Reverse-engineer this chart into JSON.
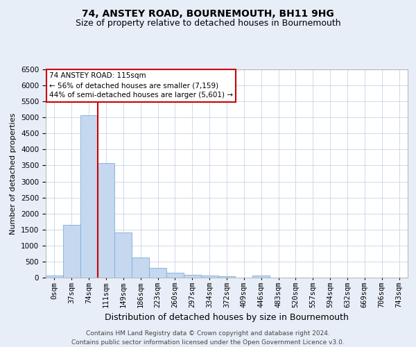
{
  "title": "74, ANSTEY ROAD, BOURNEMOUTH, BH11 9HG",
  "subtitle": "Size of property relative to detached houses in Bournemouth",
  "xlabel": "Distribution of detached houses by size in Bournemouth",
  "ylabel": "Number of detached properties",
  "footer_line1": "Contains HM Land Registry data © Crown copyright and database right 2024.",
  "footer_line2": "Contains public sector information licensed under the Open Government Licence v3.0.",
  "bar_labels": [
    "0sqm",
    "37sqm",
    "74sqm",
    "111sqm",
    "149sqm",
    "186sqm",
    "223sqm",
    "260sqm",
    "297sqm",
    "334sqm",
    "372sqm",
    "409sqm",
    "446sqm",
    "483sqm",
    "520sqm",
    "557sqm",
    "594sqm",
    "632sqm",
    "669sqm",
    "706sqm",
    "743sqm"
  ],
  "bar_values": [
    75,
    1640,
    5080,
    3580,
    1410,
    620,
    305,
    155,
    95,
    60,
    50,
    0,
    55,
    0,
    0,
    0,
    0,
    0,
    0,
    0,
    0
  ],
  "bar_color": "#c5d8f0",
  "bar_edge_color": "#7aaed6",
  "vline_color": "#cc0000",
  "annotation_text": "74 ANSTEY ROAD: 115sqm\n← 56% of detached houses are smaller (7,159)\n44% of semi-detached houses are larger (5,601) →",
  "annotation_box_color": "#ffffff",
  "annotation_border_color": "#cc0000",
  "ylim": [
    0,
    6500
  ],
  "yticks": [
    0,
    500,
    1000,
    1500,
    2000,
    2500,
    3000,
    3500,
    4000,
    4500,
    5000,
    5500,
    6000,
    6500
  ],
  "bg_color": "#e8eef8",
  "plot_bg_color": "#ffffff",
  "grid_color": "#c8d4e8",
  "title_fontsize": 10,
  "subtitle_fontsize": 9,
  "ylabel_fontsize": 8,
  "xlabel_fontsize": 9,
  "tick_fontsize": 7.5,
  "annot_fontsize": 7.5,
  "footer_fontsize": 6.5
}
